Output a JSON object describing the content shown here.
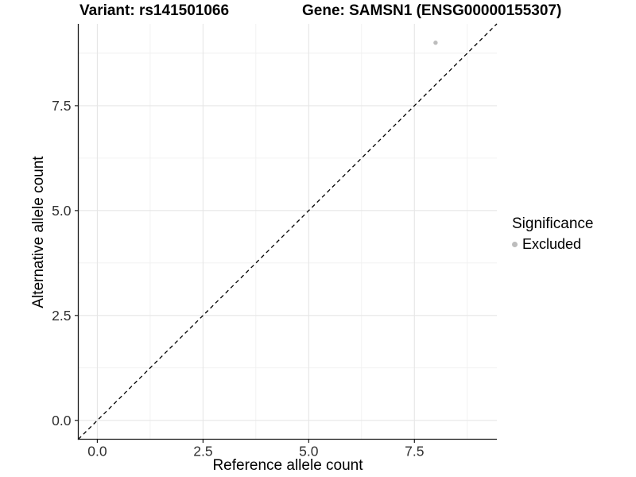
{
  "titles": {
    "variant": "Variant: rs141501066",
    "gene": "Gene: SAMSN1 (ENSG00000155307)"
  },
  "legend": {
    "title": "Significance",
    "items": [
      {
        "label": "Excluded",
        "color": "#bdbdbd"
      }
    ]
  },
  "chart_data": {
    "type": "scatter",
    "xlabel": "Reference allele count",
    "ylabel": "Alternative allele count",
    "xlim": [
      -0.45,
      9.45
    ],
    "ylim": [
      -0.45,
      9.45
    ],
    "x_ticks": [
      0.0,
      2.5,
      5.0,
      7.5
    ],
    "x_tick_labels": [
      "0.0",
      "2.5",
      "5.0",
      "7.5"
    ],
    "y_ticks": [
      0.0,
      2.5,
      5.0,
      7.5
    ],
    "y_tick_labels": [
      "0.0",
      "2.5",
      "5.0",
      "7.5"
    ],
    "x_minor_ticks": [
      1.25,
      3.75,
      6.25,
      8.75
    ],
    "y_minor_ticks": [
      1.25,
      3.75,
      6.25,
      8.75
    ],
    "grid": true,
    "legend_position": "right",
    "series": [
      {
        "name": "Excluded",
        "color": "#bdbdbd"
      }
    ],
    "points": [
      {
        "x": 8,
        "y": 9,
        "series": "Excluded"
      }
    ],
    "reference_line": {
      "type": "identity",
      "slope": 1,
      "intercept": 0,
      "style": "dashed"
    }
  },
  "style": {
    "background": "#ffffff",
    "grid_major": "#e6e6e6",
    "grid_minor": "#efefef",
    "axis_line": "#1a1a1a",
    "tick_text": "#303030",
    "reference_line": "#000000",
    "point_color": "#bdbdbd"
  }
}
